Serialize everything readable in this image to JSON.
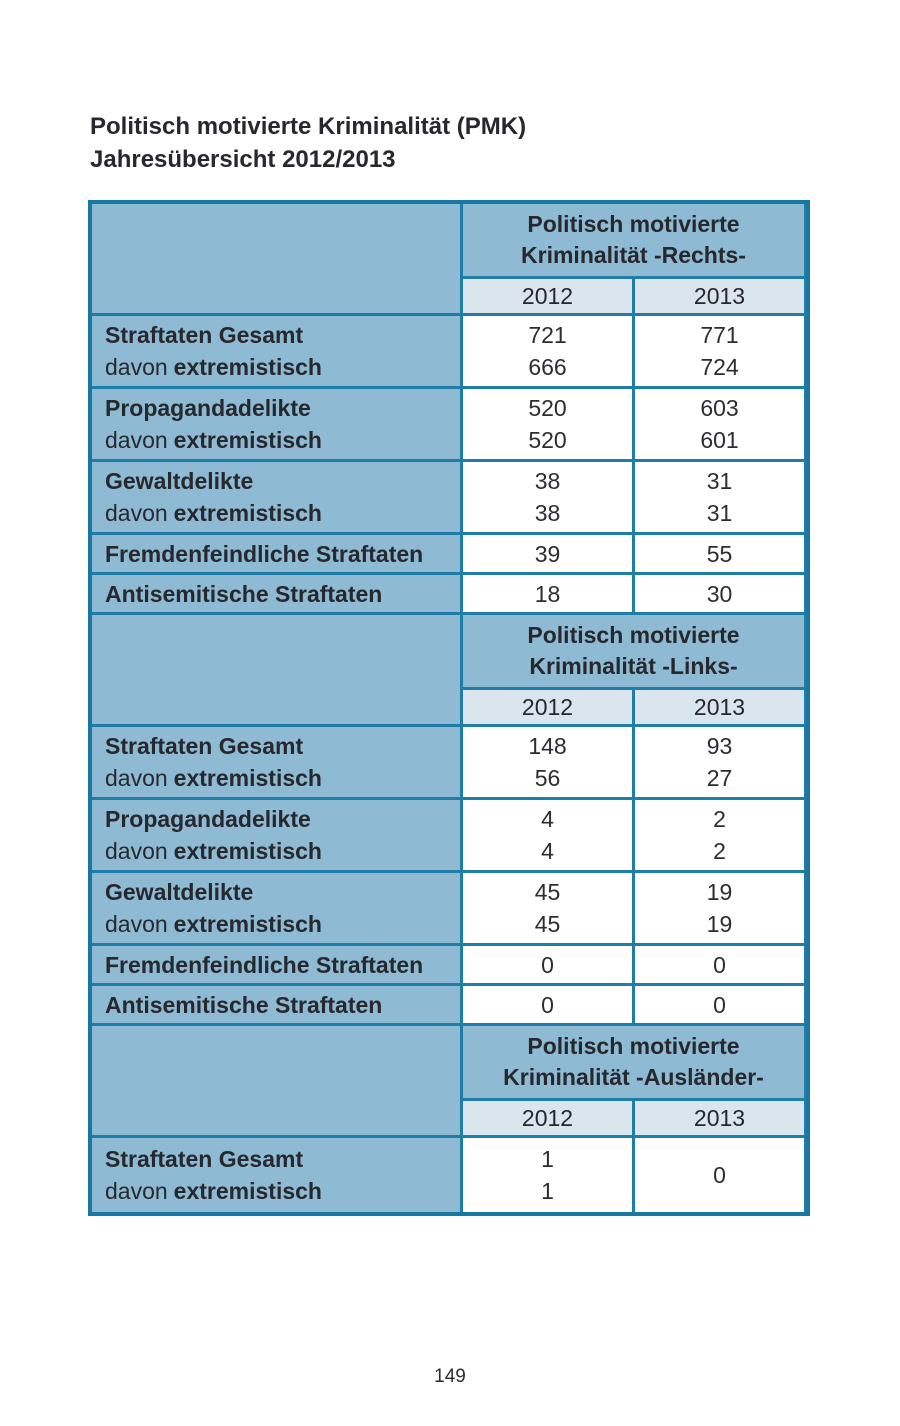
{
  "title": {
    "line1": "Politisch motivierte Kriminalität (PMK)",
    "line2": "Jahresübersicht 2012/2013"
  },
  "footer": {
    "page_number": "149"
  },
  "colors": {
    "grid_teal": "#1e7ea7",
    "cell_blue": "#8fbad3",
    "year_row_blue": "#dae5ee",
    "data_cell_white": "#ffffff",
    "text_dark": "#26282d"
  },
  "table": {
    "sections": [
      {
        "header_line1": "Politisch motivierte",
        "header_line2": "Kriminalität -Rechts-",
        "years": [
          "2012",
          "2013"
        ],
        "rows": [
          {
            "label": "Straftaten Gesamt",
            "sub_prefix": "davon",
            "sub_bold": "extremistisch",
            "y2012": [
              "721",
              "666"
            ],
            "y2013": [
              "771",
              "724"
            ]
          },
          {
            "label": "Propagandadelikte",
            "sub_prefix": "davon",
            "sub_bold": "extremistisch",
            "y2012": [
              "520",
              "520"
            ],
            "y2013": [
              "603",
              "601"
            ]
          },
          {
            "label": "Gewaltdelikte",
            "sub_prefix": "davon",
            "sub_bold": "extremistisch",
            "y2012": [
              "38",
              "38"
            ],
            "y2013": [
              "31",
              "31"
            ]
          },
          {
            "label": "Fremdenfeindliche Straftaten",
            "y2012": [
              "39"
            ],
            "y2013": [
              "55"
            ]
          },
          {
            "label": "Antisemitische Straftaten",
            "y2012": [
              "18"
            ],
            "y2013": [
              "30"
            ]
          }
        ]
      },
      {
        "header_line1": "Politisch motivierte",
        "header_line2": "Kriminalität -Links-",
        "years": [
          "2012",
          "2013"
        ],
        "rows": [
          {
            "label": "Straftaten Gesamt",
            "sub_prefix": "davon",
            "sub_bold": "extremistisch",
            "y2012": [
              "148",
              "56"
            ],
            "y2013": [
              "93",
              "27"
            ]
          },
          {
            "label": "Propagandadelikte",
            "sub_prefix": "davon",
            "sub_bold": "extremistisch",
            "y2012": [
              "4",
              "4"
            ],
            "y2013": [
              "2",
              "2"
            ]
          },
          {
            "label": "Gewaltdelikte",
            "sub_prefix": "davon",
            "sub_bold": "extremistisch",
            "y2012": [
              "45",
              "45"
            ],
            "y2013": [
              "19",
              "19"
            ]
          },
          {
            "label": "Fremdenfeindliche Straftaten",
            "y2012": [
              "0"
            ],
            "y2013": [
              "0"
            ]
          },
          {
            "label": "Antisemitische Straftaten",
            "y2012": [
              "0"
            ],
            "y2013": [
              "0"
            ]
          }
        ]
      },
      {
        "header_line1": "Politisch motivierte",
        "header_line2": "Kriminalität -Ausländer-",
        "years": [
          "2012",
          "2013"
        ],
        "rows": [
          {
            "label": "Straftaten Gesamt",
            "sub_prefix": "davon",
            "sub_bold": "extremistisch",
            "y2012": [
              "1",
              "1"
            ],
            "y2013": [
              "0"
            ]
          }
        ]
      }
    ]
  }
}
